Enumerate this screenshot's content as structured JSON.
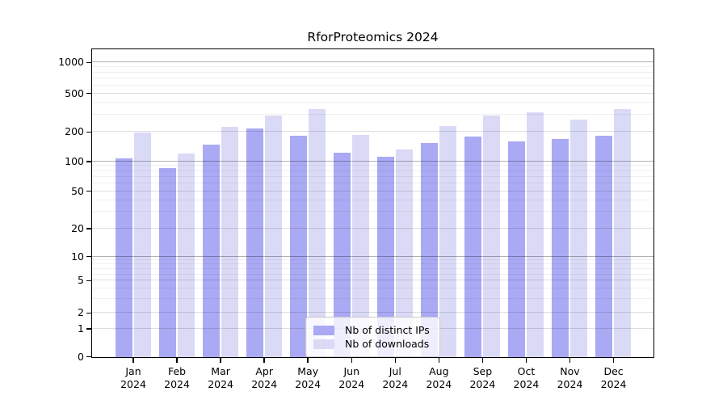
{
  "title": "RforProteomics 2024",
  "legend": {
    "items": [
      {
        "label": "Nb of distinct IPs",
        "color": "#a9a9f4"
      },
      {
        "label": "Nb of downloads",
        "color": "#dadaf7"
      }
    ]
  },
  "chart_data": {
    "type": "bar",
    "title": "RforProteomics 2024",
    "categories": [
      "Jan 2024",
      "Feb 2024",
      "Mar 2024",
      "Apr 2024",
      "May 2024",
      "Jun 2024",
      "Jul 2024",
      "Aug 2024",
      "Sep 2024",
      "Oct 2024",
      "Nov 2024",
      "Dec 2024"
    ],
    "months": [
      "Jan",
      "Feb",
      "Mar",
      "Apr",
      "May",
      "Jun",
      "Jul",
      "Aug",
      "Sep",
      "Oct",
      "Nov",
      "Dec"
    ],
    "year": "2024",
    "series": [
      {
        "name": "Nb of distinct IPs",
        "color": "#a9a9f4",
        "values": [
          108,
          87,
          150,
          222,
          186,
          123,
          113,
          155,
          183,
          162,
          170,
          186
        ]
      },
      {
        "name": "Nb of downloads",
        "color": "#dadaf7",
        "values": [
          200,
          122,
          229,
          299,
          351,
          190,
          135,
          231,
          299,
          326,
          274,
          351
        ]
      }
    ],
    "xlabel": "",
    "ylabel": "",
    "yticks": [
      0,
      1,
      2,
      5,
      10,
      20,
      50,
      100,
      200,
      500,
      1000
    ],
    "yaxis_scale": "logarithmic (compressed near zero)",
    "ylim": [
      0,
      1300
    ],
    "grid": true,
    "legend_position": "inside bottom-center"
  }
}
